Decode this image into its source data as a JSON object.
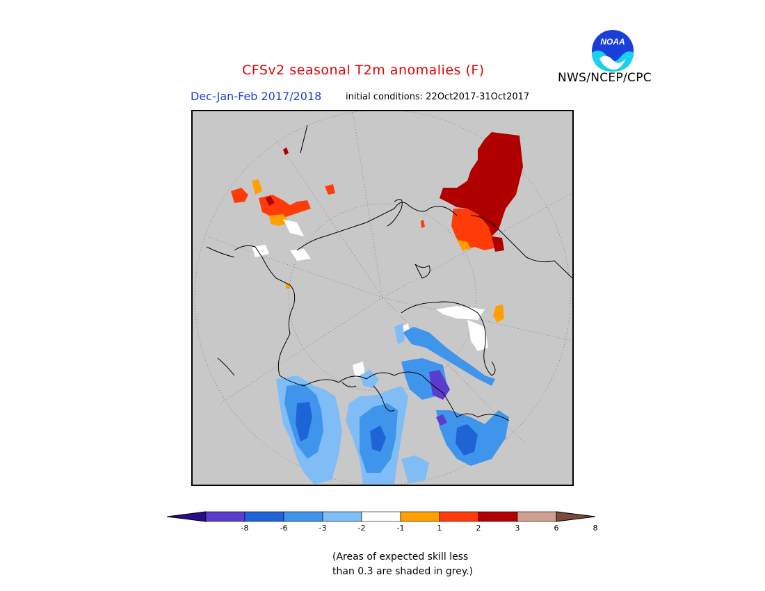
{
  "title": "CFSv2 seasonal T2m anomalies (F)",
  "agency": "NWS/NCEP/CPC",
  "season": "Dec-Jan-Feb 2017/2018",
  "initial_conditions": "initial conditions: 22Oct2017-31Oct2017",
  "logo_text": "NOAA",
  "note": {
    "line1": "(Areas of expected skill less",
    "line2": "than 0.3 are shaded in grey.)"
  },
  "colorbar": {
    "colors": [
      "#2b0a8c",
      "#5a3ccf",
      "#1f64d6",
      "#3f95ec",
      "#80bdf6",
      "#ffffff",
      "#ffa000",
      "#ff3b0a",
      "#b00000",
      "#cf9f8f",
      "#7a4a3a"
    ],
    "ticks": [
      "-8",
      "-6",
      "-3",
      "-2",
      "-1",
      "1",
      "2",
      "3",
      "6",
      "8"
    ]
  }
}
